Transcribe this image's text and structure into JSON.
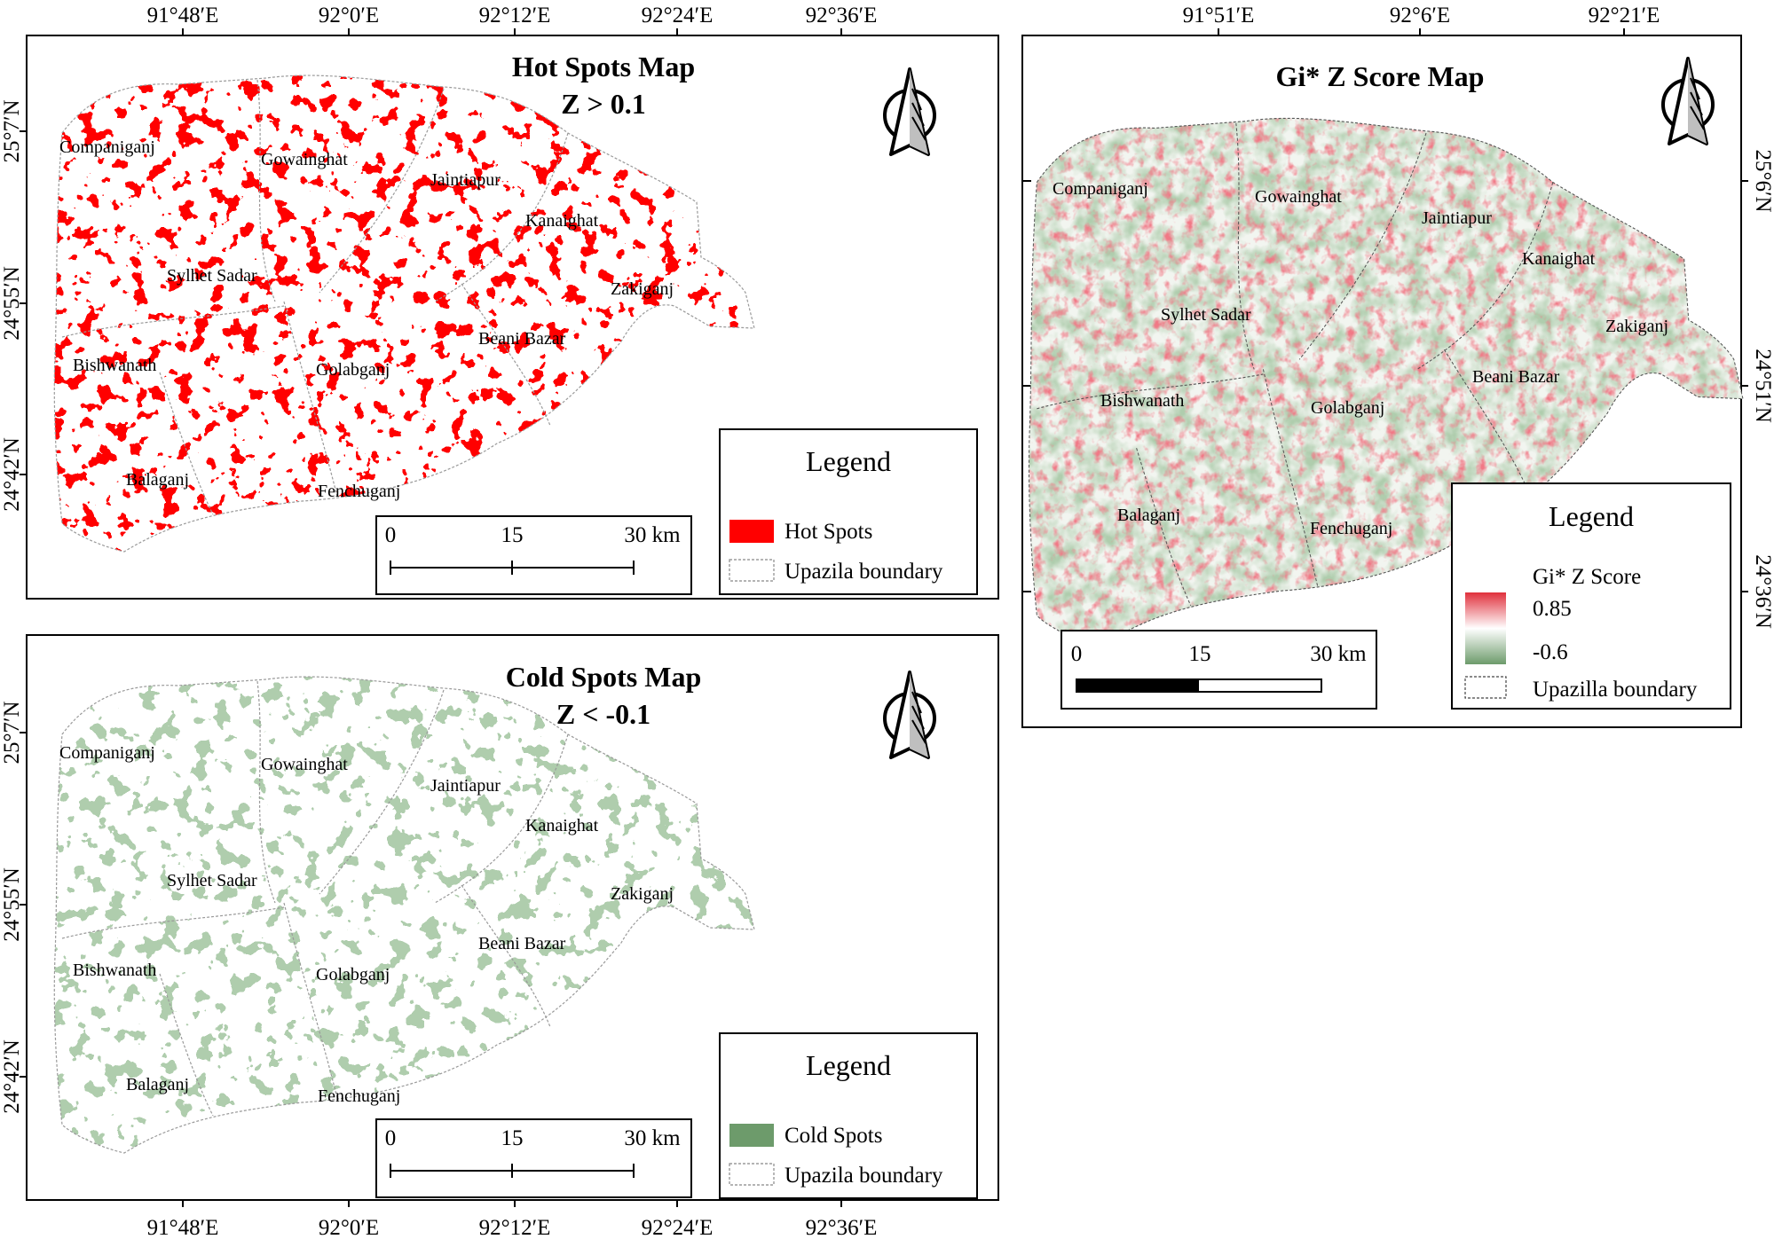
{
  "colors": {
    "hot": "#ff0000",
    "cold": "#6d9b6b",
    "frame": "#000000",
    "ramp_high": "#e0303c",
    "ramp_mid": "#ffffff",
    "ramp_low": "#6d9b6b"
  },
  "hot_map": {
    "title": "Hot Spots Map",
    "subtitle": "Z > 0.1",
    "top_ticks": [
      "91°48′E",
      "92°0′E",
      "92°12′E",
      "92°24′E",
      "92°36′E"
    ],
    "left_ticks": [
      "25°7′N",
      "24°55′N",
      "24°42′N"
    ],
    "legend": {
      "heading": "Legend",
      "items": [
        "Hot Spots",
        "Upazila boundary"
      ]
    },
    "scale": {
      "labels": [
        "0",
        "15",
        "30 km"
      ]
    }
  },
  "cold_map": {
    "title": "Cold Spots Map",
    "subtitle": "Z < -0.1",
    "bottom_ticks": [
      "91°48′E",
      "92°0′E",
      "92°12′E",
      "92°24′E",
      "92°36′E"
    ],
    "left_ticks": [
      "25°7′N",
      "24°55′N",
      "24°42′N"
    ],
    "legend": {
      "heading": "Legend",
      "items": [
        "Cold Spots",
        "Upazila boundary"
      ]
    },
    "scale": {
      "labels": [
        "0",
        "15",
        "30 km"
      ]
    }
  },
  "gi_map": {
    "title": "Gi* Z Score Map",
    "top_ticks": [
      "91°51′E",
      "92°6′E",
      "92°21′E"
    ],
    "right_ticks": [
      "25°6′N",
      "24°51′N",
      "24°36′N"
    ],
    "legend": {
      "heading": "Legend",
      "ramp_label": "Gi* Z Score",
      "high": "0.85",
      "low": "-0.6",
      "boundary": "Upazilla boundary"
    },
    "scale": {
      "labels": [
        "0",
        "15",
        "30 km"
      ]
    }
  },
  "upazilas": [
    "Companiganj",
    "Gowainghat",
    "Jaintiapur",
    "Kanaighat",
    "Sylhet Sadar",
    "Zakiganj",
    "Beani Bazar",
    "Bishwanath",
    "Golabganj",
    "Balaganj",
    "Fenchuganj"
  ]
}
